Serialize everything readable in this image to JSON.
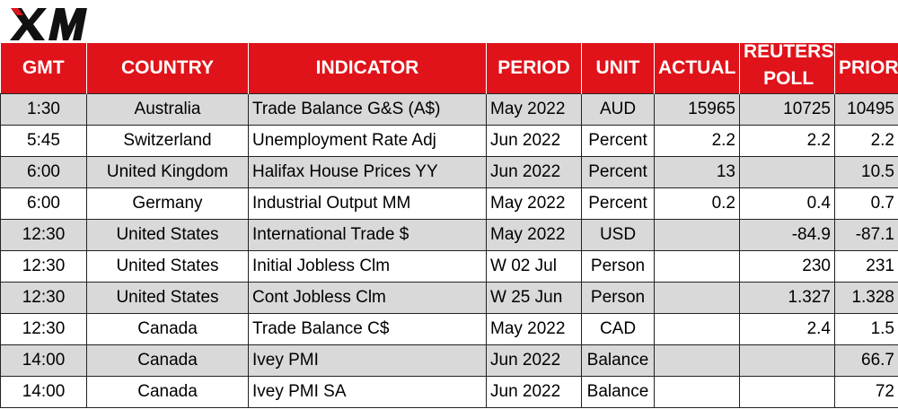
{
  "brand": {
    "logo_text": "XM",
    "color": "#e0131a"
  },
  "table": {
    "headers": {
      "gmt": "GMT",
      "country": "COUNTRY",
      "indicator": "INDICATOR",
      "period": "PERIOD",
      "unit": "UNIT",
      "actual": "ACTUAL",
      "reuters_line1": "REUTERS",
      "reuters_line2": "POLL",
      "prior": "PRIOR"
    },
    "rows": [
      {
        "gmt": "1:30",
        "country": "Australia",
        "indicator": "Trade Balance G&S (A$)",
        "period": "May 2022",
        "unit": "AUD",
        "actual": "15965",
        "poll": "10725",
        "prior": "10495"
      },
      {
        "gmt": "5:45",
        "country": "Switzerland",
        "indicator": "Unemployment Rate Adj",
        "period": "Jun 2022",
        "unit": "Percent",
        "actual": "2.2",
        "poll": "2.2",
        "prior": "2.2"
      },
      {
        "gmt": "6:00",
        "country": "United Kingdom",
        "indicator": "Halifax House Prices YY",
        "period": "Jun 2022",
        "unit": "Percent",
        "actual": "13",
        "poll": "",
        "prior": "10.5"
      },
      {
        "gmt": "6:00",
        "country": "Germany",
        "indicator": "Industrial Output MM",
        "period": "May 2022",
        "unit": "Percent",
        "actual": "0.2",
        "poll": "0.4",
        "prior": "0.7"
      },
      {
        "gmt": "12:30",
        "country": "United States",
        "indicator": "International Trade $",
        "period": "May 2022",
        "unit": "USD",
        "actual": "",
        "poll": "-84.9",
        "prior": "-87.1"
      },
      {
        "gmt": "12:30",
        "country": "United States",
        "indicator": "Initial Jobless Clm",
        "period": "W 02 Jul",
        "unit": "Person",
        "actual": "",
        "poll": "230",
        "prior": "231"
      },
      {
        "gmt": "12:30",
        "country": "United States",
        "indicator": "Cont Jobless Clm",
        "period": "W 25 Jun",
        "unit": "Person",
        "actual": "",
        "poll": "1.327",
        "prior": "1.328"
      },
      {
        "gmt": "12:30",
        "country": "Canada",
        "indicator": "Trade Balance C$",
        "period": "May 2022",
        "unit": "CAD",
        "actual": "",
        "poll": "2.4",
        "prior": "1.5"
      },
      {
        "gmt": "14:00",
        "country": "Canada",
        "indicator": "Ivey PMI",
        "period": "Jun 2022",
        "unit": "Balance",
        "actual": "",
        "poll": "",
        "prior": "66.7"
      },
      {
        "gmt": "14:00",
        "country": "Canada",
        "indicator": "Ivey PMI SA",
        "period": "Jun 2022",
        "unit": "Balance",
        "actual": "",
        "poll": "",
        "prior": "72"
      }
    ]
  }
}
